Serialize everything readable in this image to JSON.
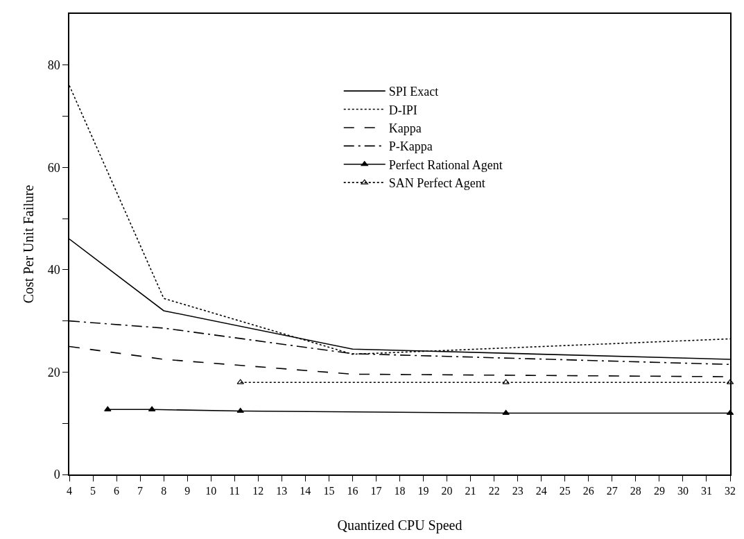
{
  "chart_data": {
    "type": "line",
    "xlabel": "Quantized CPU Speed",
    "ylabel": "Cost Per Unit Failure",
    "xlim": [
      4,
      32
    ],
    "xticks": [
      4,
      5,
      6,
      7,
      8,
      9,
      10,
      11,
      12,
      13,
      14,
      15,
      16,
      17,
      18,
      19,
      20,
      21,
      22,
      23,
      24,
      25,
      26,
      27,
      28,
      29,
      30,
      31,
      32
    ],
    "ylim": [
      0,
      90
    ],
    "yticks": [
      0,
      {
        "value": 10,
        "label": null
      },
      20,
      {
        "value": 30,
        "label": null
      },
      40,
      {
        "value": 50,
        "label": null
      },
      60,
      {
        "value": 70,
        "label": null
      },
      80
    ],
    "grid": false,
    "legend": "top",
    "series": [
      {
        "name": "SPI Exact",
        "color": "#000000",
        "line_style": "solid",
        "x": [
          4,
          8,
          16,
          32
        ],
        "values": [
          46,
          32,
          24.5,
          22.5
        ]
      },
      {
        "name": "D-IPI",
        "color": "#000000",
        "line_style": "dotted",
        "x": [
          4,
          8,
          16,
          32
        ],
        "values": [
          76,
          34.4,
          23.5,
          26.5
        ]
      },
      {
        "name": "Kappa",
        "color": "#000000",
        "line_style": "dashed",
        "x": [
          4,
          8,
          16,
          32
        ],
        "values": [
          25,
          22.5,
          19.6,
          19.1
        ]
      },
      {
        "name": "P-Kappa",
        "color": "#000000",
        "line_style": "dashdot",
        "x": [
          4,
          8,
          16,
          32
        ],
        "values": [
          30,
          28.6,
          23.6,
          21.5
        ]
      },
      {
        "name": "Perfect Rational Agent",
        "color": "#000000",
        "line_style": "solid",
        "marker": "triangle",
        "x": [
          5.625,
          7.5,
          11.25,
          22.5,
          32
        ],
        "values": [
          12.7,
          12.7,
          12.4,
          12,
          12
        ]
      },
      {
        "name": "SAN Perfect Agent",
        "color": "#000000",
        "line_style": "dotted",
        "marker": "triangle-open",
        "x": [
          11.25,
          22.5,
          32
        ],
        "values": [
          18,
          18,
          18
        ]
      }
    ]
  }
}
